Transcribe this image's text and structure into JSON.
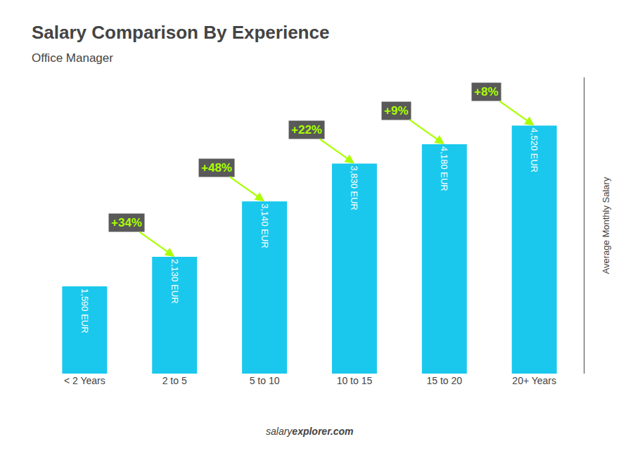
{
  "chart_data": {
    "type": "bar",
    "title": "Salary Comparison By Experience",
    "subtitle": "Office Manager",
    "categories": [
      "< 2 Years",
      "2 to 5",
      "5 to 10",
      "10 to 15",
      "15 to 20",
      "20+ Years"
    ],
    "values": [
      1590,
      2130,
      3140,
      3830,
      4180,
      4520
    ],
    "value_labels": [
      "1,590 EUR",
      "2,130 EUR",
      "3,140 EUR",
      "3,830 EUR",
      "4,180 EUR",
      "4,520 EUR"
    ],
    "data_labels": true,
    "color": "#1ac8ed",
    "ylabel": "Average Monthly Salary",
    "ylim": [
      0,
      5400
    ],
    "yticks": [],
    "tick_labels": "x",
    "grid": false,
    "annotations": [
      {
        "text": "+34%",
        "color": "#aaff00"
      },
      {
        "text": "+48%",
        "color": "#aaff00"
      },
      {
        "text": "+22%",
        "color": "#aaff00"
      },
      {
        "text": "+9%",
        "color": "#aaff00"
      },
      {
        "text": "+8%",
        "color": "#aaff00"
      }
    ],
    "footer": [
      "salary",
      "explorer.com"
    ]
  }
}
